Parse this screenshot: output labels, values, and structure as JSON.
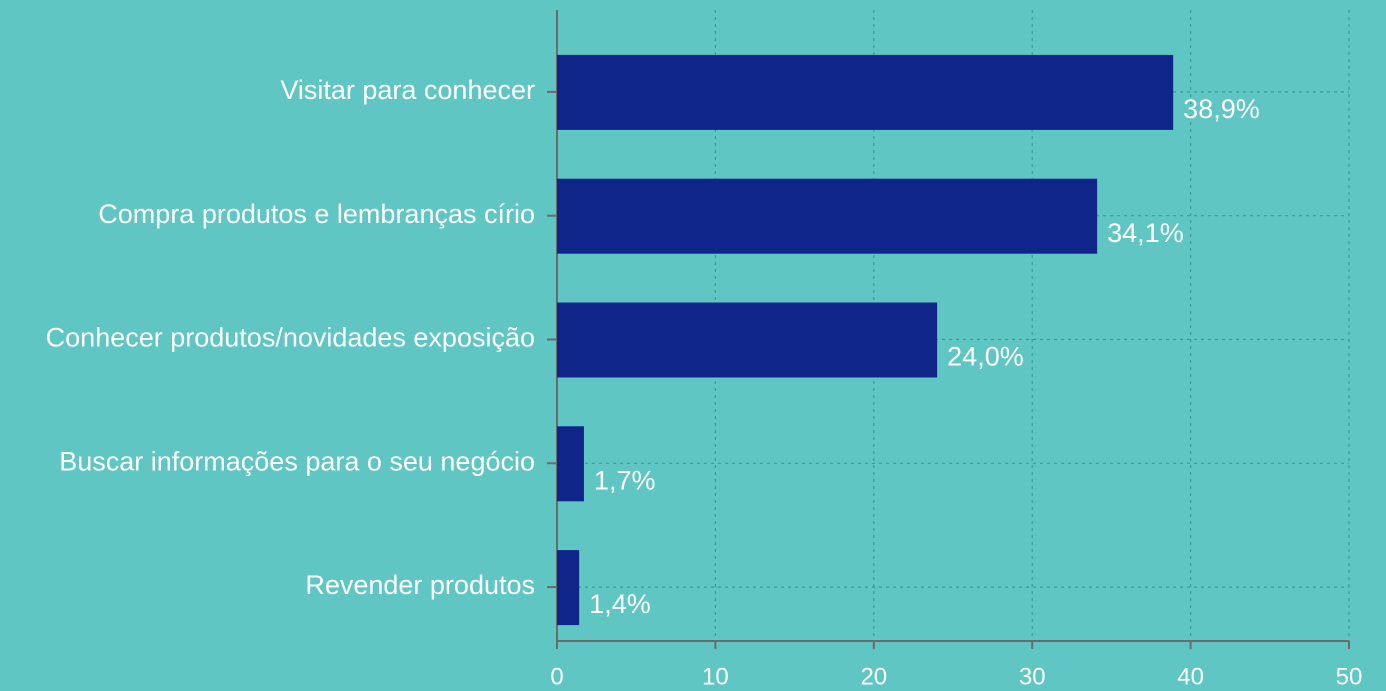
{
  "chart_data": {
    "type": "bar",
    "orientation": "horizontal",
    "categories": [
      "Visitar para conhecer",
      "Compra produtos e lembranças círio",
      "Conhecer produtos/novidades exposição",
      "Buscar informações para o seu negócio",
      "Revender produtos"
    ],
    "values": [
      38.9,
      34.1,
      24.0,
      1.7,
      1.4
    ],
    "value_labels": [
      "38,9%",
      "34,1%",
      "24,0%",
      "1,7%",
      "1,4%"
    ],
    "color": "#0f258a",
    "xlim": [
      0,
      50
    ],
    "xticks": [
      0,
      10,
      20,
      30,
      40,
      50
    ],
    "grid": true
  }
}
